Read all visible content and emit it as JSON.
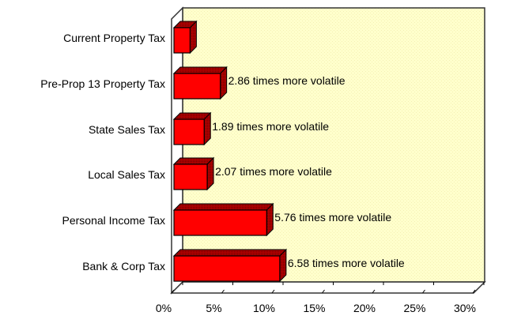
{
  "chart_data": {
    "type": "bar",
    "orientation": "horizontal",
    "style": "3d",
    "title": "",
    "xlabel": "",
    "ylabel": "",
    "categories": [
      "Current Property Tax",
      "Pre-Prop 13 Property Tax",
      "State Sales Tax",
      "Local Sales Tax",
      "Personal Income Tax",
      "Bank & Corp Tax"
    ],
    "values": [
      1.6,
      4.6,
      3.0,
      3.3,
      9.2,
      10.5
    ],
    "data_labels": [
      "",
      "2.86 times more volatile",
      "1.89 times more volatile",
      "2.07 times more volatile",
      "5.76 times more volatile",
      "6.58 times more volatile"
    ],
    "xlim": [
      0,
      30
    ],
    "x_ticks": [
      "0%",
      "5%",
      "10%",
      "15%",
      "20%",
      "25%",
      "30%"
    ],
    "grid": false,
    "legend": null,
    "colors": {
      "bar_front": "#ff0000",
      "bar_side": "#990000",
      "bar_top": "#cc0000",
      "plot_background": "#ffffcc",
      "wall": "#ffffff",
      "outline": "#000000"
    }
  }
}
